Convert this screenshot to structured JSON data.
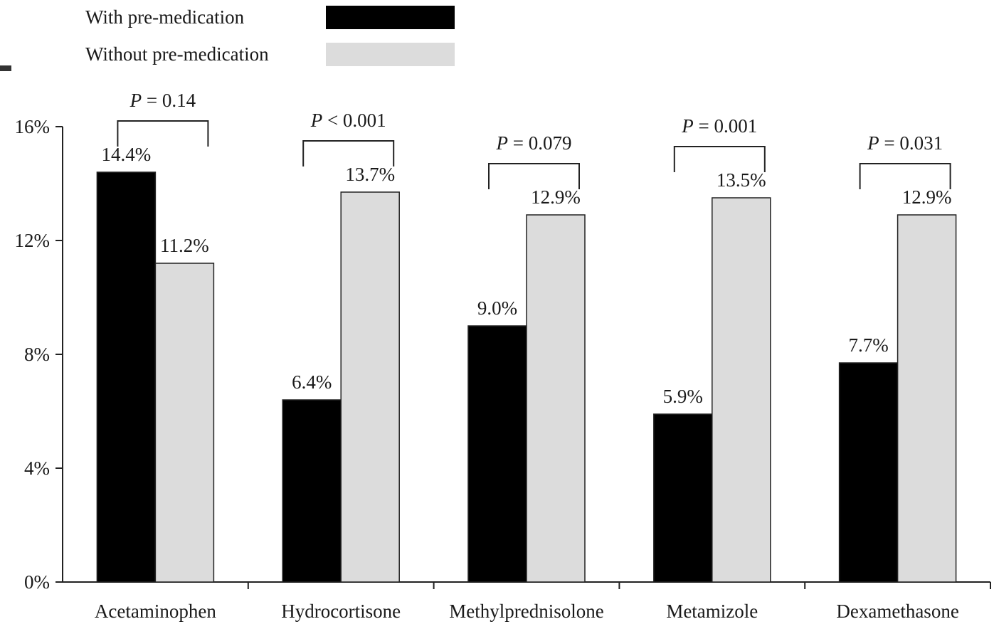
{
  "chart_data": {
    "type": "bar",
    "title": "",
    "xlabel": "",
    "ylabel": "",
    "ylim": [
      0,
      16
    ],
    "yticks": [
      0,
      4,
      8,
      12,
      16
    ],
    "ytick_labels": [
      "0%",
      "4%",
      "8%",
      "12%",
      "16%"
    ],
    "grid": false,
    "legend_position": "top-left",
    "categories": [
      "Acetaminophen",
      "Hydrocortisone",
      "Methylprednisolone",
      "Metamizole",
      "Dexamethasone"
    ],
    "series": [
      {
        "name": "With pre-medication",
        "color": "#000000",
        "values": [
          14.4,
          6.4,
          9.0,
          5.9,
          7.7
        ],
        "labels": [
          "14.4%",
          "6.4%",
          "9.0%",
          "5.9%",
          "7.7%"
        ]
      },
      {
        "name": "Without pre-medication",
        "color": "#dcdcdc",
        "values": [
          11.2,
          13.7,
          12.9,
          13.5,
          12.9
        ],
        "labels": [
          "11.2%",
          "13.7%",
          "12.9%",
          "13.5%",
          "12.9%"
        ]
      }
    ],
    "annotations": [
      {
        "category": "Acetaminophen",
        "p_symbol": "P",
        "op": " = ",
        "value": "0.14"
      },
      {
        "category": "Hydrocortisone",
        "p_symbol": "P",
        "op": " < ",
        "value": "0.001"
      },
      {
        "category": "Methylprednisolone",
        "p_symbol": "P",
        "op": " = ",
        "value": "0.079"
      },
      {
        "category": "Metamizole",
        "p_symbol": "P",
        "op": " = ",
        "value": "0.001"
      },
      {
        "category": "Dexamethasone",
        "p_symbol": "P",
        "op": " = ",
        "value": "0.031"
      }
    ]
  }
}
